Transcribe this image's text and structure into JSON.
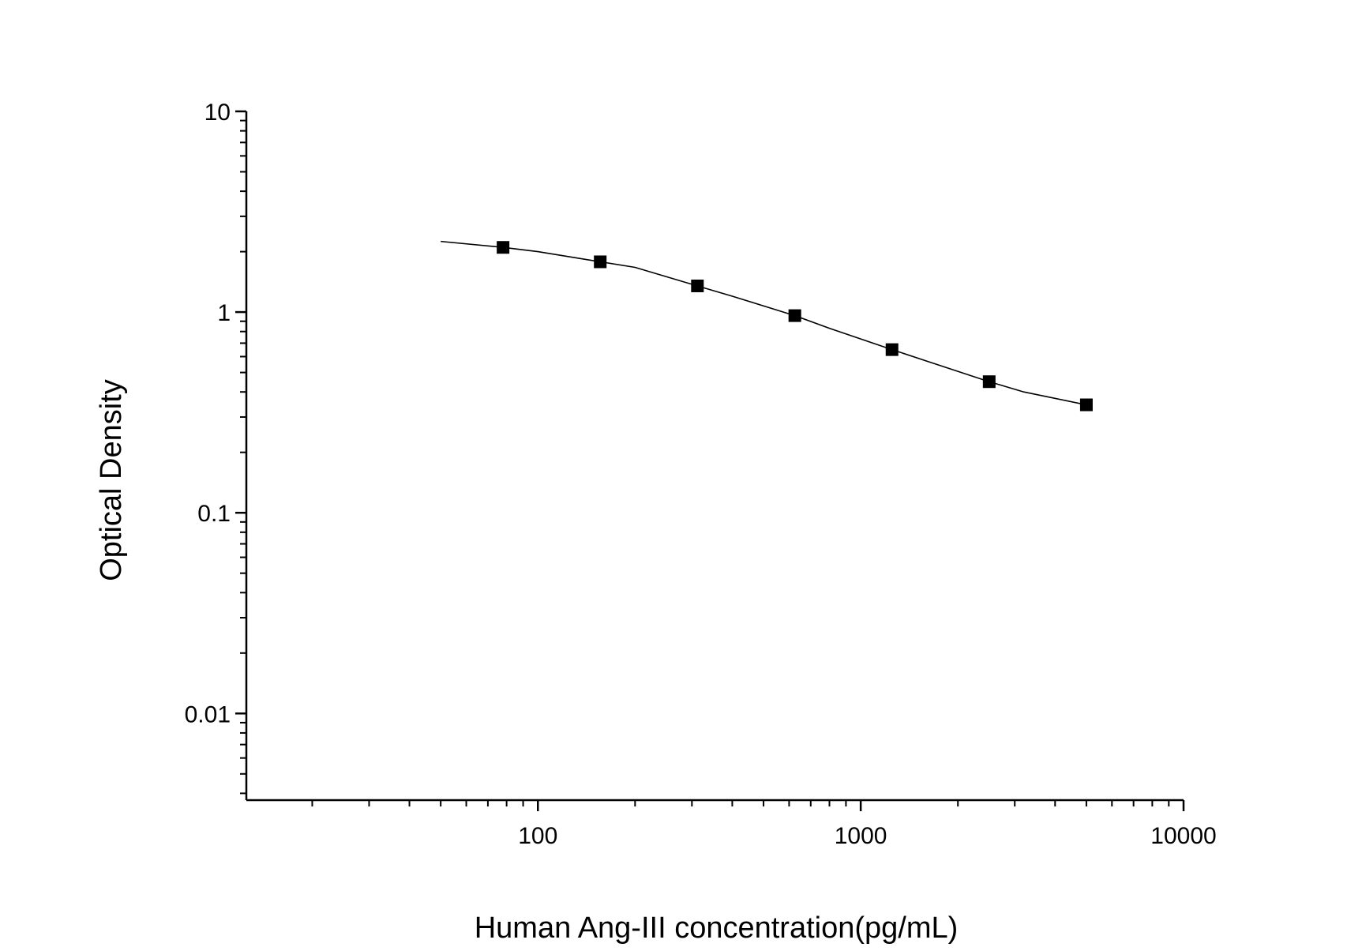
{
  "chart_data": {
    "type": "scatter",
    "xlabel": "Human Ang-III concentration(pg/mL)",
    "ylabel": "Optical Density",
    "xscale": "log",
    "yscale": "log",
    "xlim": [
      12.5,
      10000
    ],
    "ylim": [
      0.0037,
      10
    ],
    "x_tick_labels": [
      "100",
      "1000",
      "10000"
    ],
    "y_tick_labels": [
      "10",
      "1",
      "0.1",
      "0.01"
    ],
    "grid": false,
    "legend": "none",
    "series": [
      {
        "marker": "square",
        "color": "#000000",
        "x": [
          78,
          156,
          312,
          625,
          1250,
          2500,
          5000
        ],
        "y": [
          2.1,
          1.78,
          1.35,
          0.96,
          0.65,
          0.45,
          0.345
        ]
      }
    ],
    "fit_curve": {
      "color": "#000000",
      "x": [
        50,
        78,
        100,
        156,
        200,
        312,
        400,
        625,
        800,
        1250,
        1600,
        2500,
        3200,
        5000
      ],
      "y": [
        2.25,
        2.1,
        2.0,
        1.78,
        1.67,
        1.35,
        1.2,
        0.96,
        0.83,
        0.65,
        0.57,
        0.45,
        0.4,
        0.345
      ]
    }
  }
}
